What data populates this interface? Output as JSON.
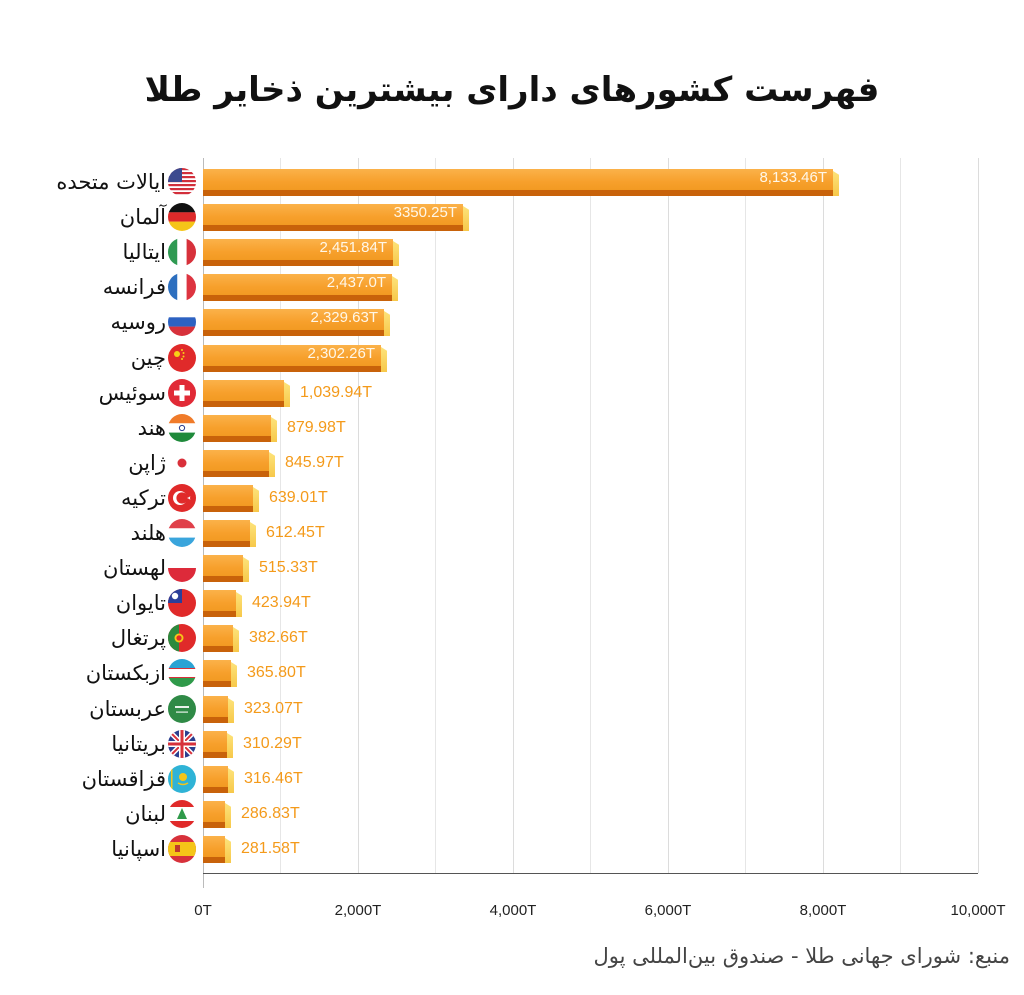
{
  "title": "فهرست کشورهای دارای بیشترین ذخایر طلا",
  "source": "منبع: شورای جهانی طلا - صندوق بین‌المللی پول",
  "chart_data": {
    "type": "bar",
    "orientation": "horizontal",
    "title": "فهرست کشورهای دارای بیشترین ذخایر طلا",
    "xlabel": "",
    "ylabel": "",
    "xlim": [
      0,
      10000
    ],
    "x_ticks": [
      "0T",
      "2,000T",
      "4,000T",
      "6,000T",
      "8,000T",
      "10,000T"
    ],
    "grid": true,
    "categories": [
      "ایالات متحده",
      "آلمان",
      "ایتالیا",
      "فرانسه",
      "روسیه",
      "چین",
      "سوئیس",
      "هند",
      "ژاپن",
      "ترکیه",
      "هلند",
      "لهستان",
      "تایوان",
      "پرتغال",
      "ازبکستان",
      "عربستان",
      "بریتانیا",
      "قزاقستان",
      "لبنان",
      "اسپانیا"
    ],
    "values": [
      8133.46,
      3350.25,
      2451.84,
      2437.0,
      2329.63,
      2302.26,
      1039.94,
      879.98,
      845.97,
      639.01,
      612.45,
      515.33,
      423.94,
      382.66,
      365.8,
      323.07,
      310.29,
      316.46,
      286.83,
      281.58
    ],
    "value_labels": [
      "8,133.46T",
      "3350.25T",
      "2,451.84T",
      "2,437.0T",
      "2,329.63T",
      "2,302.26T",
      "1,039.94T",
      "879.98T",
      "845.97T",
      "639.01T",
      "612.45T",
      "515.33T",
      "423.94T",
      "382.66T",
      "365.80T",
      "323.07T",
      "310.29T",
      "316.46T",
      "286.83T",
      "281.58T"
    ],
    "bar_color": "#f7a02c",
    "label_color": "#f49a1a"
  },
  "rows": [
    {
      "country": "ایالات متحده",
      "flag": "us-flag-icon",
      "value": "8,133.46T"
    },
    {
      "country": "آلمان",
      "flag": "germany-flag-icon",
      "value": "3350.25T"
    },
    {
      "country": "ایتالیا",
      "flag": "italy-flag-icon",
      "value": "2,451.84T"
    },
    {
      "country": "فرانسه",
      "flag": "france-flag-icon",
      "value": "2,437.0T"
    },
    {
      "country": "روسیه",
      "flag": "russia-flag-icon",
      "value": "2,329.63T"
    },
    {
      "country": "چین",
      "flag": "china-flag-icon",
      "value": "2,302.26T"
    },
    {
      "country": "سوئیس",
      "flag": "switzerland-flag-icon",
      "value": "1,039.94T"
    },
    {
      "country": "هند",
      "flag": "india-flag-icon",
      "value": "879.98T"
    },
    {
      "country": "ژاپن",
      "flag": "japan-flag-icon",
      "value": "845.97T"
    },
    {
      "country": "ترکیه",
      "flag": "turkey-flag-icon",
      "value": "639.01T"
    },
    {
      "country": "هلند",
      "flag": "netherlands-flag-icon",
      "value": "612.45T"
    },
    {
      "country": "لهستان",
      "flag": "poland-flag-icon",
      "value": "515.33T"
    },
    {
      "country": "تایوان",
      "flag": "taiwan-flag-icon",
      "value": "423.94T"
    },
    {
      "country": "پرتغال",
      "flag": "portugal-flag-icon",
      "value": "382.66T"
    },
    {
      "country": "ازبکستان",
      "flag": "uzbekistan-flag-icon",
      "value": "365.80T"
    },
    {
      "country": "عربستان",
      "flag": "saudi-arabia-flag-icon",
      "value": "323.07T"
    },
    {
      "country": "بریتانیا",
      "flag": "uk-flag-icon",
      "value": "310.29T"
    },
    {
      "country": "قزاقستان",
      "flag": "kazakhstan-flag-icon",
      "value": "316.46T"
    },
    {
      "country": "لبنان",
      "flag": "lebanon-flag-icon",
      "value": "286.83T"
    },
    {
      "country": "اسپانیا",
      "flag": "spain-flag-icon",
      "value": "281.58T"
    }
  ]
}
